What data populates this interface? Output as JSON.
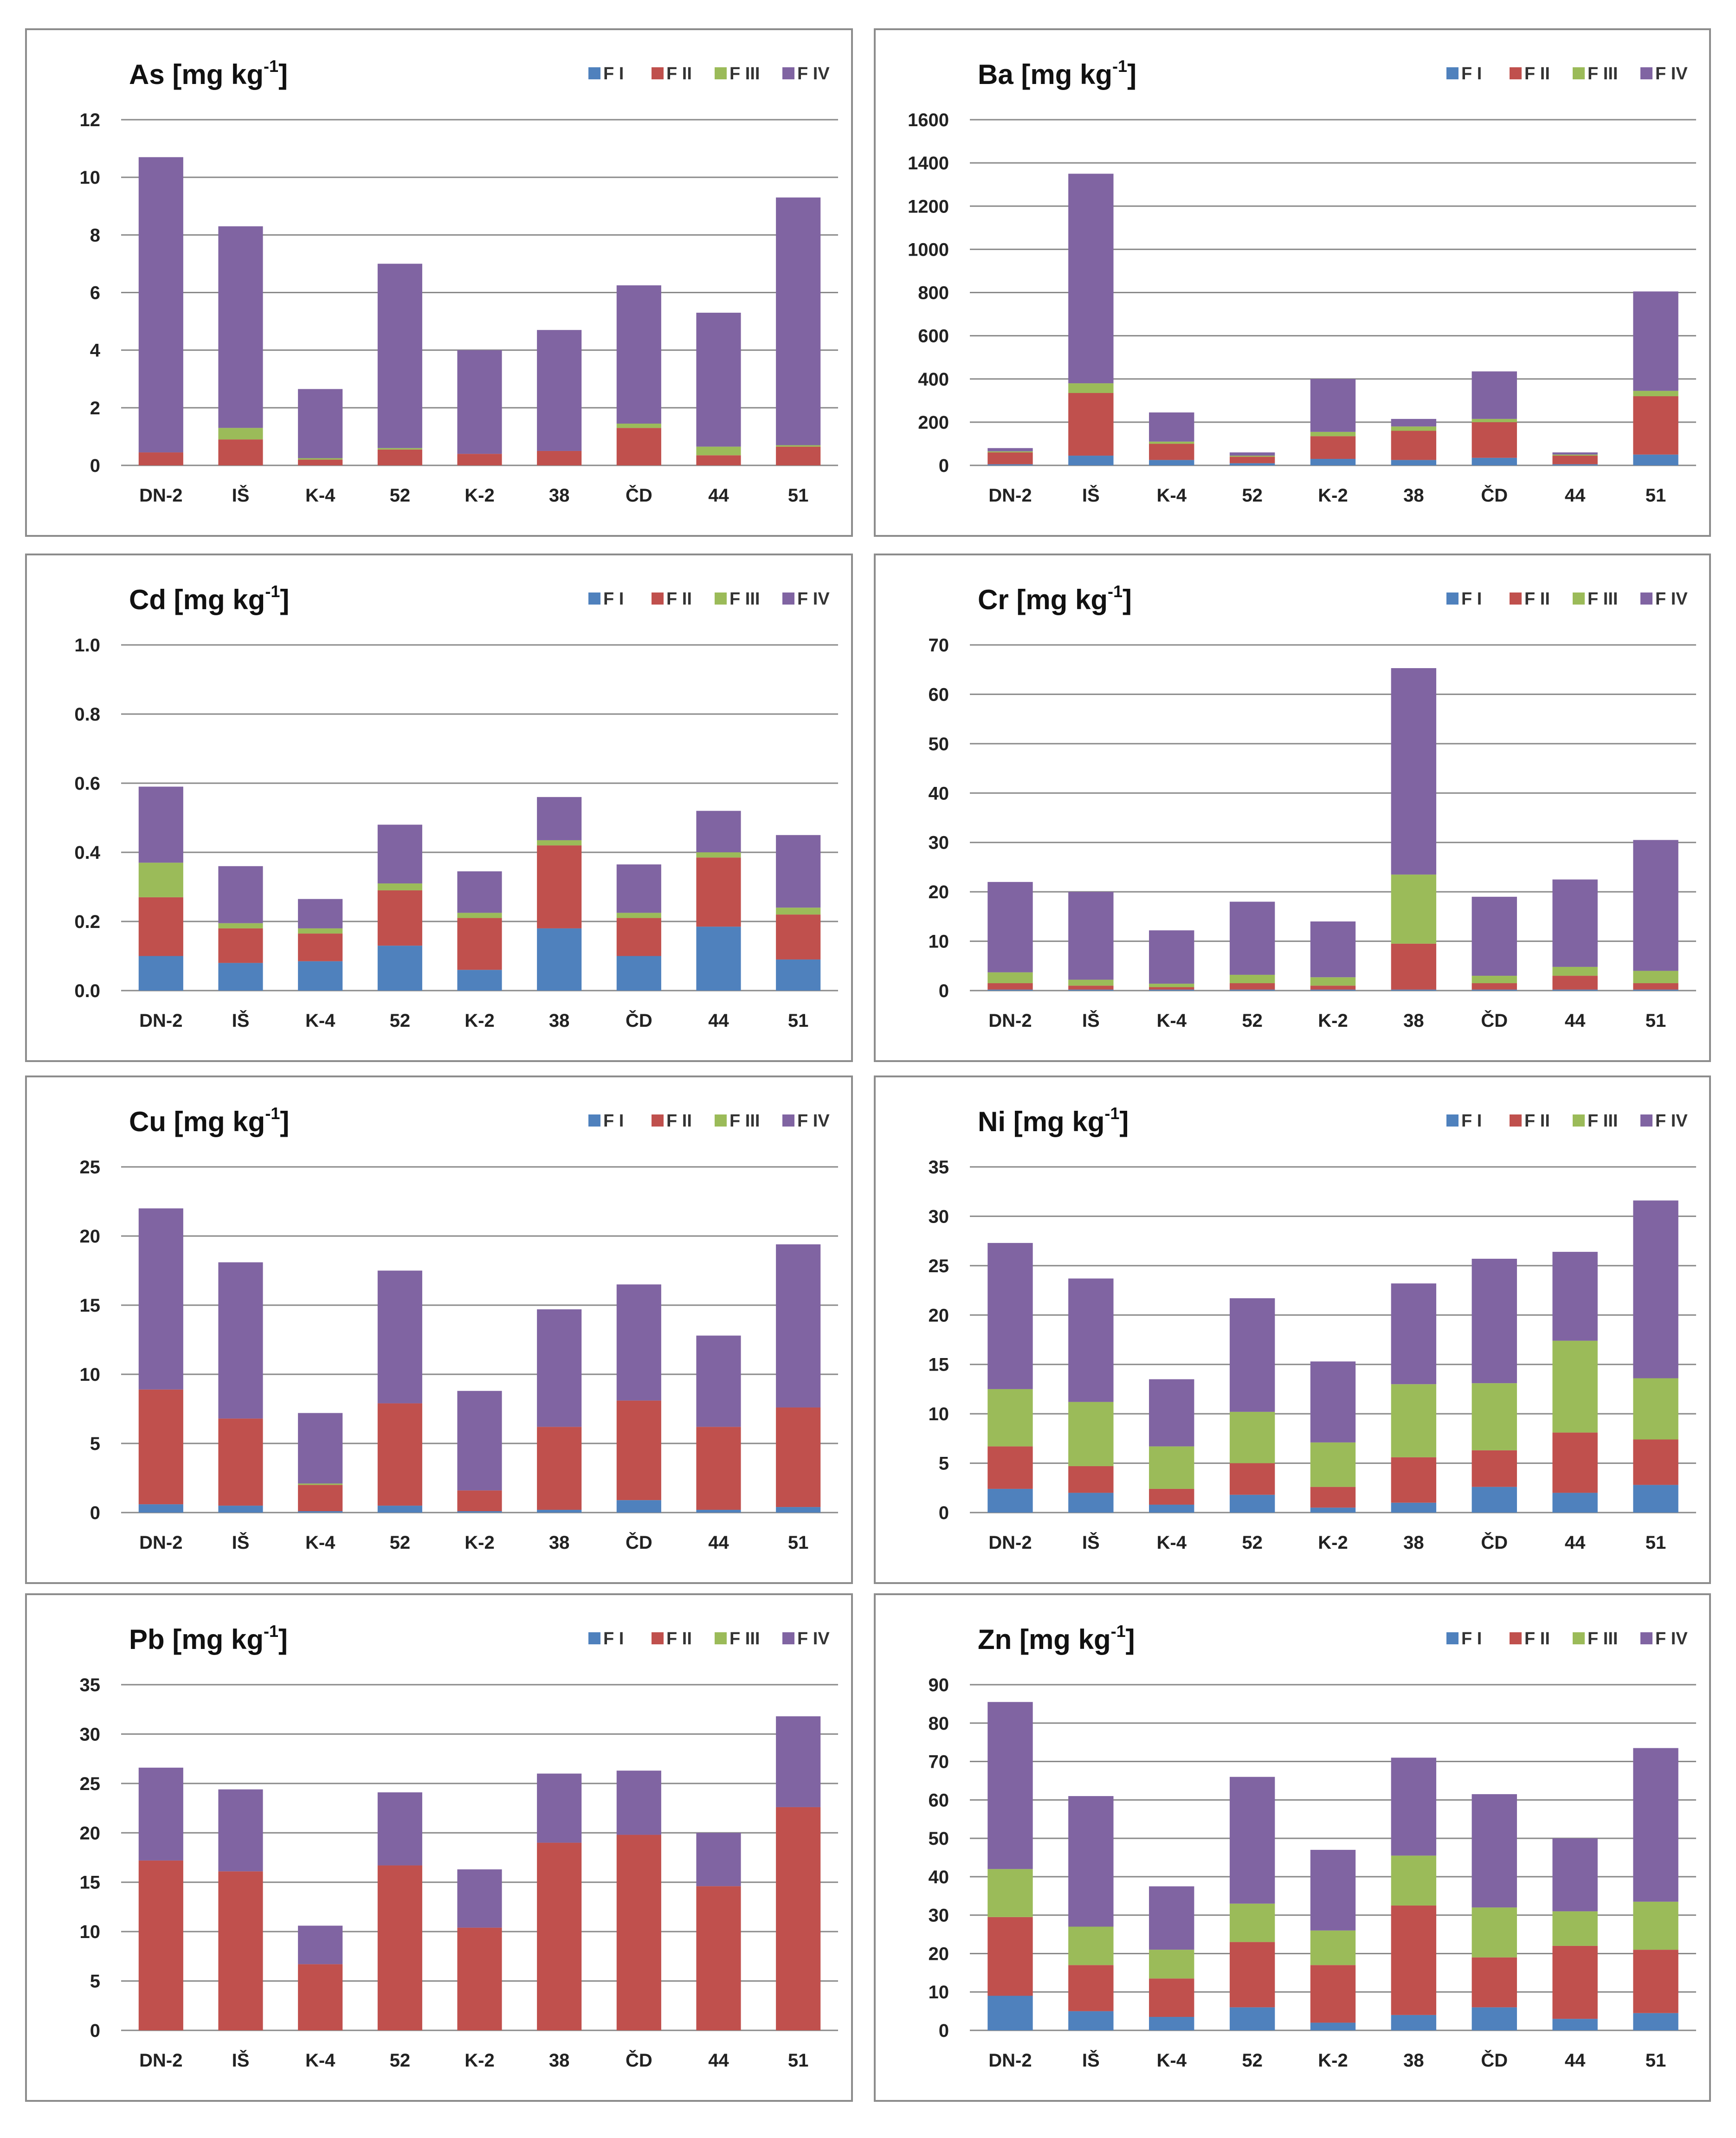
{
  "legend": [
    "F I",
    "F II",
    "F III",
    "F IV"
  ],
  "colors": {
    "F I": "#4f81bd",
    "F II": "#c0504d",
    "F III": "#9bbb59",
    "F IV": "#8064a2"
  },
  "chart_data": [
    {
      "type": "bar",
      "stacked": true,
      "title": "As [mg kg",
      "unit_sup": "-1",
      "title_close": "]",
      "categories": [
        "DN-2",
        "IŠ",
        "K-4",
        "52",
        "K-2",
        "38",
        "ČD",
        "44",
        "51"
      ],
      "ylim": [
        0,
        12
      ],
      "yticks": [
        "0",
        "2",
        "4",
        "6",
        "8",
        "10",
        "12"
      ],
      "series": [
        {
          "name": "F I",
          "values": [
            0,
            0,
            0,
            0,
            0,
            0,
            0,
            0,
            0
          ]
        },
        {
          "name": "F II",
          "values": [
            0.45,
            0.9,
            0.2,
            0.55,
            0.4,
            0.5,
            1.3,
            0.35,
            0.65
          ]
        },
        {
          "name": "F III",
          "values": [
            0,
            0.4,
            0.05,
            0.05,
            0,
            0,
            0.15,
            0.3,
            0.05
          ]
        },
        {
          "name": "F IV",
          "values": [
            10.25,
            7.0,
            2.4,
            6.4,
            3.6,
            4.2,
            4.8,
            4.65,
            8.6
          ]
        }
      ]
    },
    {
      "type": "bar",
      "stacked": true,
      "title": "Ba [mg kg",
      "unit_sup": "-1",
      "title_close": "]",
      "categories": [
        "DN-2",
        "IŠ",
        "K-4",
        "52",
        "K-2",
        "38",
        "ČD",
        "44",
        "51"
      ],
      "ylim": [
        0,
        1600
      ],
      "yticks": [
        "0",
        "200",
        "400",
        "600",
        "800",
        "1000",
        "1200",
        "1400",
        "1600"
      ],
      "series": [
        {
          "name": "F I",
          "values": [
            5,
            45,
            25,
            10,
            30,
            25,
            35,
            5,
            50
          ]
        },
        {
          "name": "F II",
          "values": [
            55,
            290,
            75,
            30,
            105,
            135,
            165,
            40,
            270
          ]
        },
        {
          "name": "F III",
          "values": [
            5,
            45,
            10,
            5,
            20,
            20,
            15,
            5,
            25
          ]
        },
        {
          "name": "F IV",
          "values": [
            15,
            970,
            135,
            15,
            245,
            35,
            220,
            10,
            460
          ]
        }
      ]
    },
    {
      "type": "bar",
      "stacked": true,
      "title": "Cd [mg kg",
      "unit_sup": "-1",
      "title_close": "]",
      "categories": [
        "DN-2",
        "IŠ",
        "K-4",
        "52",
        "K-2",
        "38",
        "ČD",
        "44",
        "51"
      ],
      "ylim": [
        0,
        1.0
      ],
      "yticks": [
        "0.0",
        "0.2",
        "0.4",
        "0.6",
        "0.8",
        "1.0"
      ],
      "series": [
        {
          "name": "F I",
          "values": [
            0.1,
            0.08,
            0.085,
            0.13,
            0.06,
            0.18,
            0.1,
            0.185,
            0.09
          ]
        },
        {
          "name": "F II",
          "values": [
            0.17,
            0.1,
            0.08,
            0.16,
            0.15,
            0.24,
            0.11,
            0.2,
            0.13
          ]
        },
        {
          "name": "F III",
          "values": [
            0.1,
            0.015,
            0.015,
            0.02,
            0.015,
            0.015,
            0.015,
            0.015,
            0.02
          ]
        },
        {
          "name": "F IV",
          "values": [
            0.22,
            0.165,
            0.085,
            0.17,
            0.12,
            0.125,
            0.14,
            0.12,
            0.21
          ]
        }
      ]
    },
    {
      "type": "bar",
      "stacked": true,
      "title": "Cr [mg kg",
      "unit_sup": "-1",
      "title_close": "]",
      "categories": [
        "DN-2",
        "IŠ",
        "K-4",
        "52",
        "K-2",
        "38",
        "ČD",
        "44",
        "51"
      ],
      "ylim": [
        0,
        70
      ],
      "yticks": [
        "0",
        "10",
        "20",
        "30",
        "40",
        "50",
        "60",
        "70"
      ],
      "series": [
        {
          "name": "F I",
          "values": [
            0.2,
            0.2,
            0.2,
            0.2,
            0.2,
            0.2,
            0.2,
            0.2,
            0.2
          ]
        },
        {
          "name": "F II",
          "values": [
            1.3,
            0.8,
            0.5,
            1.3,
            0.8,
            9.3,
            1.3,
            2.8,
            1.3
          ]
        },
        {
          "name": "F III",
          "values": [
            2.2,
            1.2,
            0.7,
            1.7,
            1.7,
            14.0,
            1.5,
            1.8,
            2.5
          ]
        },
        {
          "name": "F IV",
          "values": [
            18.3,
            17.8,
            10.8,
            14.8,
            11.3,
            41.8,
            16.0,
            17.7,
            26.5
          ]
        }
      ]
    },
    {
      "type": "bar",
      "stacked": true,
      "title": "Cu [mg kg",
      "unit_sup": "-1",
      "title_close": "]",
      "categories": [
        "DN-2",
        "IŠ",
        "K-4",
        "52",
        "K-2",
        "38",
        "ČD",
        "44",
        "51"
      ],
      "ylim": [
        0,
        25
      ],
      "yticks": [
        "0",
        "5",
        "10",
        "15",
        "20",
        "25"
      ],
      "series": [
        {
          "name": "F I",
          "values": [
            0.6,
            0.5,
            0.1,
            0.5,
            0.1,
            0.2,
            0.9,
            0.2,
            0.4
          ]
        },
        {
          "name": "F II",
          "values": [
            8.3,
            6.3,
            1.9,
            7.4,
            1.5,
            6.0,
            7.2,
            6.0,
            7.2
          ]
        },
        {
          "name": "F III",
          "values": [
            0,
            0,
            0.1,
            0,
            0,
            0,
            0,
            0,
            0
          ]
        },
        {
          "name": "F IV",
          "values": [
            13.1,
            11.3,
            5.1,
            9.6,
            7.2,
            8.5,
            8.4,
            6.6,
            11.8
          ]
        }
      ]
    },
    {
      "type": "bar",
      "stacked": true,
      "title": "Ni [mg kg",
      "unit_sup": "-1",
      "title_close": "]",
      "categories": [
        "DN-2",
        "IŠ",
        "K-4",
        "52",
        "K-2",
        "38",
        "ČD",
        "44",
        "51"
      ],
      "ylim": [
        0,
        35
      ],
      "yticks": [
        "0",
        "5",
        "10",
        "15",
        "20",
        "25",
        "30",
        "35"
      ],
      "series": [
        {
          "name": "F I",
          "values": [
            2.4,
            2.0,
            0.8,
            1.8,
            0.5,
            1.0,
            2.6,
            2.0,
            2.8
          ]
        },
        {
          "name": "F II",
          "values": [
            4.3,
            2.7,
            1.6,
            3.2,
            2.1,
            4.6,
            3.7,
            6.1,
            4.6
          ]
        },
        {
          "name": "F III",
          "values": [
            5.8,
            6.5,
            4.3,
            5.2,
            4.5,
            7.4,
            6.8,
            9.3,
            6.2
          ]
        },
        {
          "name": "F IV",
          "values": [
            14.8,
            12.5,
            6.8,
            11.5,
            8.2,
            10.2,
            12.6,
            9.0,
            18.0
          ]
        }
      ]
    },
    {
      "type": "bar",
      "stacked": true,
      "title": "Pb [mg kg",
      "unit_sup": "-1",
      "title_close": "]",
      "categories": [
        "DN-2",
        "IŠ",
        "K-4",
        "52",
        "K-2",
        "38",
        "ČD",
        "44",
        "51"
      ],
      "ylim": [
        0,
        35
      ],
      "yticks": [
        "0",
        "5",
        "10",
        "15",
        "20",
        "25",
        "30",
        "35"
      ],
      "series": [
        {
          "name": "F I",
          "values": [
            0,
            0,
            0,
            0,
            0,
            0,
            0,
            0,
            0
          ]
        },
        {
          "name": "F II",
          "values": [
            17.2,
            16.1,
            6.7,
            16.7,
            10.4,
            19.0,
            19.8,
            14.6,
            22.6
          ]
        },
        {
          "name": "F III",
          "values": [
            0,
            0,
            0,
            0,
            0,
            0,
            0,
            0,
            0
          ]
        },
        {
          "name": "F IV",
          "values": [
            9.4,
            8.3,
            3.9,
            7.4,
            5.9,
            7.0,
            6.5,
            5.4,
            9.2
          ]
        }
      ]
    },
    {
      "type": "bar",
      "stacked": true,
      "title": "Zn [mg kg",
      "unit_sup": "-1",
      "title_close": "]",
      "categories": [
        "DN-2",
        "IŠ",
        "K-4",
        "52",
        "K-2",
        "38",
        "ČD",
        "44",
        "51"
      ],
      "ylim": [
        0,
        90
      ],
      "yticks": [
        "0",
        "10",
        "20",
        "30",
        "40",
        "50",
        "60",
        "70",
        "80",
        "90"
      ],
      "series": [
        {
          "name": "F I",
          "values": [
            9.0,
            5.0,
            3.5,
            6.0,
            2.0,
            4.0,
            6.0,
            3.0,
            4.5
          ]
        },
        {
          "name": "F II",
          "values": [
            20.5,
            12.0,
            10.0,
            17.0,
            15.0,
            28.5,
            13.0,
            19.0,
            16.5
          ]
        },
        {
          "name": "F III",
          "values": [
            12.5,
            10.0,
            7.5,
            10.0,
            9.0,
            13.0,
            13.0,
            9.0,
            12.5
          ]
        },
        {
          "name": "F IV",
          "values": [
            43.5,
            34.0,
            16.5,
            33.0,
            21.0,
            25.5,
            29.5,
            19.0,
            40.0
          ]
        }
      ]
    }
  ]
}
